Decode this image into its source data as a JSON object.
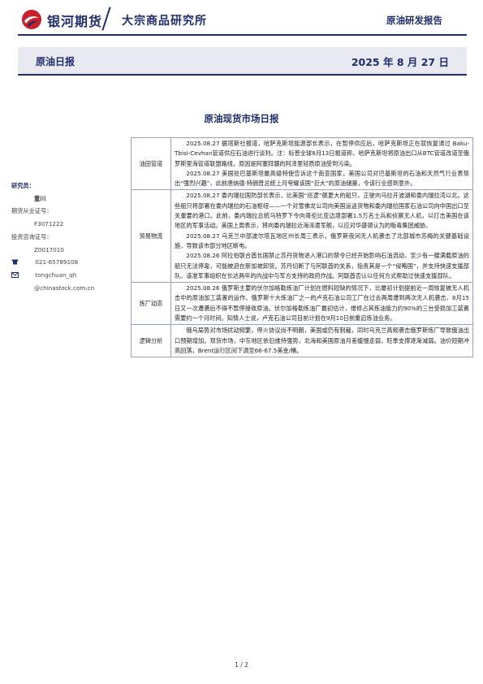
{
  "header": {
    "company": "银河期货",
    "institute": "大宗商品研究所",
    "report_type": "原油研发报告"
  },
  "banner": {
    "title": "原油日报",
    "date": "2025 年 8 月 27 日"
  },
  "document_title": "原油现货市场日报",
  "sidebar": {
    "researcher_label": "研究员：",
    "researcher_name": "童川",
    "qualification_label": "期货从业证号：",
    "qualification_no": "F3071222",
    "consulting_label": "投资咨询证号：",
    "consulting_no": "Z0017010",
    "phone": "021-65789108",
    "email_line1": "tongchuan_qh",
    "email_line2": "@chinastock.com.cn"
  },
  "table": [
    {
      "category": "油田管道",
      "paragraphs": [
        "2025.08.27 据塔斯社报道，哈萨克斯坦能源部长表示，在暂停供应后，哈萨克斯坦正在就恢复通过 Baku-Tbisi-Cevhan管道供应石油进行谈判。注：标普全球8月13日报道称，哈萨克斯坦将原油出口从BTC管道改道至俄罗斯里海管道联盟路线，原因是阿塞拜疆的阿泽里轻质原油受到污染。",
        "2025.08.27 美国驻巴基斯坦最高级特使告诉这个南亚国家，美国公司对巴基斯坦的石油和天然气行业表现出“强烈兴趣”，此前唐纳德·特朗普总统上月夸耀该国“巨大”的原油储量，令该行业感到意外。"
      ]
    },
    {
      "category": "贸易物流",
      "paragraphs": [
        "2025.08.27 委内瑞拉国防部长表示，比美国“巡逻”舰更大的船只，正驶向马拉开波湖和委内瑞拉湾以北。这些船只将部署在委内瑞拉的石油枢纽——一个对雪佛龙公司向美国运送货物和委内瑞拉国家石油公司向中国出口至关重要的港口。此前，委内瑞拉总统马特罗下令向哥伦比亚边境部署1.5万名士兵和侦察无人机，以打击美国在该地区的军事活动。美国上周表示，将向委内瑞拉近海派遣军舰，以应对华盛顿认为的贩毒集团威胁。",
        "2025.08.27 乌克兰中部波尔塔瓦地区州长周三表示，俄罗斯夜间无人机袭击了北部城市苏梅的关键基础设施，导致该市部分地区断电。",
        "2025.08.26 阿拉伯联合酋长国禁止苏丹货物进入港口的禁令已经开始影响石油流动，至少有一艘满载原油的船只无法停靠，可能被迫在新加坡卸货。苏丹切断了与阿联酋的关系，指责其是一个“侵略国”，并支持快速支援部队。该准军事组织在长达两年的内战中与军方支持的政府作战。阿联酋否认以任何方式帮助过快速支援部队。"
      ]
    },
    {
      "category": "炼厂动态",
      "paragraphs": [
        "2025.08.26 俄罗斯主要的伏尔加格勒炼油厂计划在燃料短缺的情况下，比最初计划提前近一周恢复被无人机击中的原油加工装置的运作。俄罗斯十大炼油厂之一的卢克石油公司工厂在过去两周遭到两次无人机袭击，8月15日又一次遭袭后不得不暂停接收原油。伏尔加格勒炼油厂最初估计，维修占其炼油能力约90%的三台受损加工装置需要约一个月时间。知情人士说，卢克石油公司目前计划在9月10日前重启炼油业务。"
      ]
    },
    {
      "category": "逻辑分析",
      "paragraphs": [
        "俄乌局势对市场扰动频繁，停火协议尚不明朗，美国或仍有制裁，同时乌克兰高频袭击俄罗斯炼厂导致俄油出口预期增加。现货市场，中东地区依旧维持强势，北海和美国原油月差缓慢走弱，旺季支撑逐渐减弱。油价短期冲高回落，Brent运行区间下调至66-67.5美金/桶。"
      ]
    }
  ],
  "footer": {
    "page": "1 / 2"
  },
  "colors": {
    "brand_navy": "#1f2d6b",
    "logo_red": "#c8202a",
    "banner_bg": "#e9eaf1"
  }
}
